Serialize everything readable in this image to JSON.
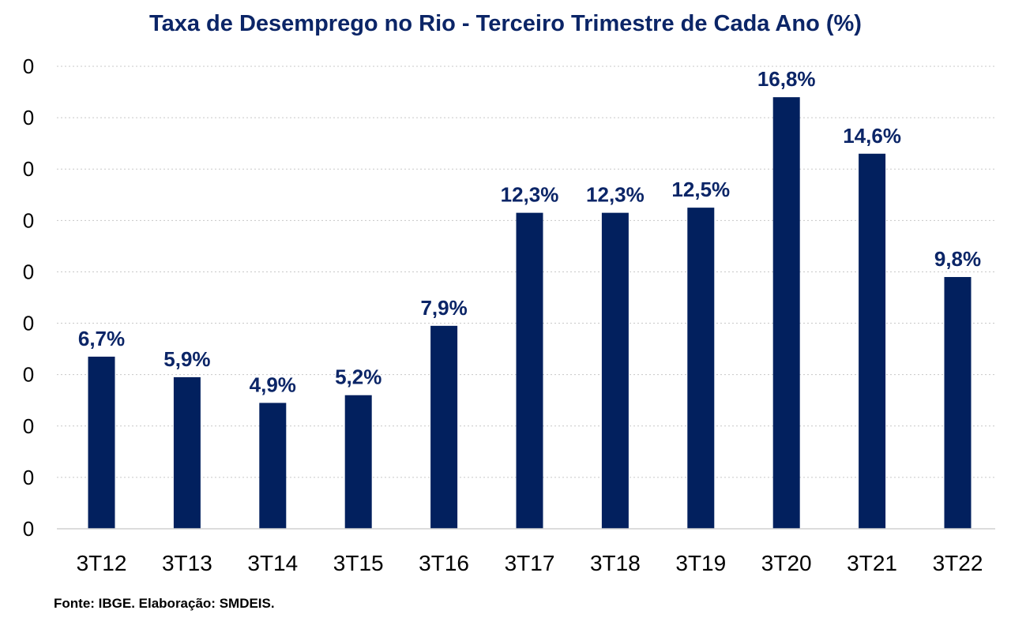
{
  "chart_data": {
    "type": "bar",
    "title": "Taxa de Desemprego no Rio - Terceiro Trimestre de Cada Ano (%)",
    "xlabel": "",
    "ylabel": "",
    "categories": [
      "3T12",
      "3T13",
      "3T14",
      "3T15",
      "3T16",
      "3T17",
      "3T18",
      "3T19",
      "3T20",
      "3T21",
      "3T22"
    ],
    "values": [
      6.7,
      5.9,
      4.9,
      5.2,
      7.9,
      12.3,
      12.3,
      12.5,
      16.8,
      14.6,
      9.8
    ],
    "data_labels": [
      "6,7%",
      "5,9%",
      "4,9%",
      "5,2%",
      "7,9%",
      "12,3%",
      "12,3%",
      "12,5%",
      "16,8%",
      "14,6%",
      "9,8%"
    ],
    "ytick_labels": [
      "0",
      "0",
      "0",
      "0",
      "0",
      "0",
      "0",
      "0",
      "0",
      "0"
    ],
    "ylim": [
      0,
      18
    ],
    "grid": true,
    "legend": "none",
    "colors": {
      "bar": "#02205e",
      "data_label": "#0b2567",
      "title": "#0b2567",
      "grid": "#c8c8c8"
    }
  },
  "footer": {
    "source": "Fonte: IBGE. Elaboração: SMDEIS."
  }
}
